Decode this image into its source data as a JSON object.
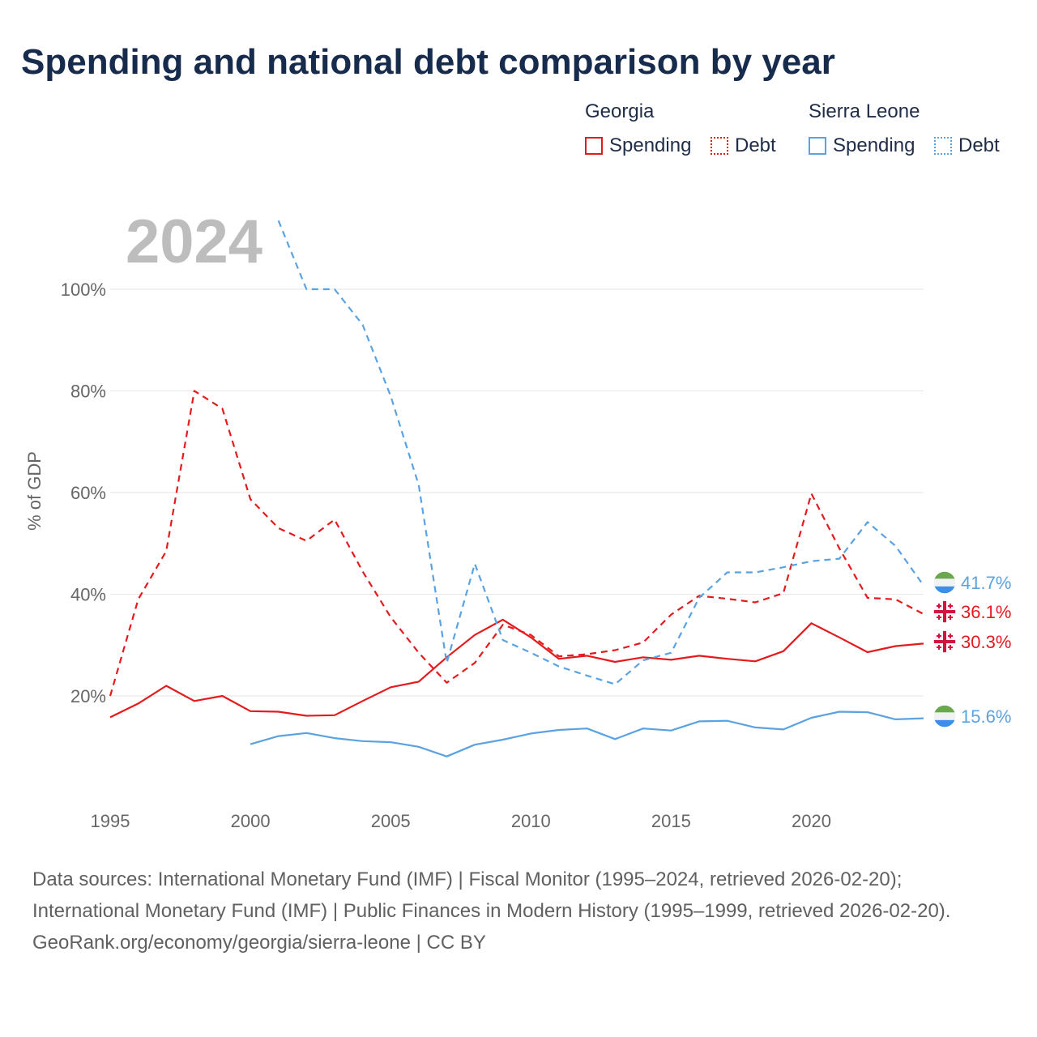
{
  "title": "Spending and national debt comparison by year",
  "year_overlay": "2024",
  "legend": {
    "groups": [
      {
        "country": "Georgia",
        "color": "#e41a1c",
        "items": [
          {
            "label": "Spending",
            "style": "solid"
          },
          {
            "label": "Debt",
            "style": "dotted"
          }
        ]
      },
      {
        "country": "Sierra Leone",
        "color": "#5aa2e0",
        "items": [
          {
            "label": "Spending",
            "style": "solid"
          },
          {
            "label": "Debt",
            "style": "dotted"
          }
        ]
      }
    ]
  },
  "sources": {
    "line1": "Data sources: International Monetary Fund (IMF) | Fiscal Monitor (1995–2024, retrieved 2026-02-20); International Monetary Fund (IMF) | Public Finances in Modern History (1995–1999, retrieved 2026-02-20).",
    "line2": "GeoRank.org/economy/georgia/sierra-leone | CC BY"
  },
  "chart_data": {
    "type": "line",
    "title": "Spending and national debt comparison by year",
    "xlabel": "",
    "ylabel": "% of GDP",
    "xlim": [
      1995,
      2024
    ],
    "ylim": [
      0,
      110
    ],
    "x_ticks": [
      1995,
      2000,
      2005,
      2010,
      2015,
      2020
    ],
    "y_ticks": [
      20,
      40,
      60,
      80,
      100
    ],
    "y_tick_labels": [
      "20%",
      "40%",
      "60%",
      "80%",
      "100%"
    ],
    "grid": true,
    "legend_position": "top-right",
    "series": [
      {
        "name": "Georgia Spending",
        "country": "Georgia",
        "style": "solid",
        "color": "#e41a1c",
        "flag": "georgia",
        "end_label": "30.3%",
        "x": [
          1995,
          1996,
          1997,
          1998,
          1999,
          2000,
          2001,
          2002,
          2003,
          2004,
          2005,
          2006,
          2007,
          2008,
          2009,
          2010,
          2011,
          2012,
          2013,
          2014,
          2015,
          2016,
          2017,
          2018,
          2019,
          2020,
          2021,
          2022,
          2023,
          2024
        ],
        "values": [
          15.8,
          18.5,
          22.0,
          19.0,
          20.0,
          17.0,
          16.9,
          16.1,
          16.2,
          19.0,
          21.7,
          22.8,
          27.6,
          32.0,
          35.0,
          31.5,
          27.3,
          27.9,
          26.7,
          27.6,
          27.1,
          27.9,
          27.3,
          26.8,
          28.8,
          34.3,
          31.5,
          28.6,
          29.8,
          30.3
        ]
      },
      {
        "name": "Georgia Debt",
        "country": "Georgia",
        "style": "dashed",
        "color": "#e41a1c",
        "flag": "georgia",
        "end_label": "36.1%",
        "x": [
          1995,
          1996,
          1997,
          1998,
          1999,
          2000,
          2001,
          2002,
          2003,
          2004,
          2005,
          2006,
          2007,
          2008,
          2009,
          2010,
          2011,
          2012,
          2013,
          2014,
          2015,
          2016,
          2017,
          2018,
          2019,
          2020,
          2021,
          2022,
          2023,
          2024
        ],
        "values": [
          20.0,
          39.0,
          48.5,
          80.0,
          76.5,
          58.7,
          53.0,
          50.5,
          54.7,
          44.5,
          35.5,
          28.5,
          22.6,
          26.5,
          34.0,
          32.0,
          27.8,
          28.2,
          29.0,
          30.5,
          36.0,
          39.7,
          39.1,
          38.4,
          40.2,
          59.8,
          49.0,
          39.3,
          39.0,
          36.1
        ]
      },
      {
        "name": "Sierra Leone Spending",
        "country": "Sierra Leone",
        "style": "solid",
        "color": "#5aa2e0",
        "flag": "sierra-leone",
        "end_label": "15.6%",
        "x": [
          2000,
          2001,
          2002,
          2003,
          2004,
          2005,
          2006,
          2007,
          2008,
          2009,
          2010,
          2011,
          2012,
          2013,
          2014,
          2015,
          2016,
          2017,
          2018,
          2019,
          2020,
          2021,
          2022,
          2023,
          2024
        ],
        "values": [
          10.5,
          12.1,
          12.7,
          11.7,
          11.1,
          10.9,
          10.0,
          8.1,
          10.4,
          11.4,
          12.6,
          13.3,
          13.6,
          11.5,
          13.6,
          13.2,
          15.0,
          15.1,
          13.8,
          13.4,
          15.7,
          16.9,
          16.8,
          15.4,
          15.6
        ]
      },
      {
        "name": "Sierra Leone Debt",
        "country": "Sierra Leone",
        "style": "dashed",
        "color": "#5aa2e0",
        "flag": "sierra-leone",
        "end_label": "41.7%",
        "x": [
          2001,
          2002,
          2003,
          2004,
          2005,
          2006,
          2007,
          2008,
          2009,
          2010,
          2011,
          2012,
          2013,
          2014,
          2015,
          2016,
          2017,
          2018,
          2019,
          2020,
          2021,
          2022,
          2023,
          2024
        ],
        "values": [
          113.5,
          100.0,
          100.0,
          93.0,
          79.0,
          61.5,
          26.5,
          46.0,
          31.0,
          28.5,
          25.8,
          24.0,
          22.3,
          27.0,
          28.5,
          39.3,
          44.3,
          44.3,
          45.3,
          46.5,
          47.0,
          54.2,
          49.5,
          41.7
        ]
      }
    ]
  }
}
